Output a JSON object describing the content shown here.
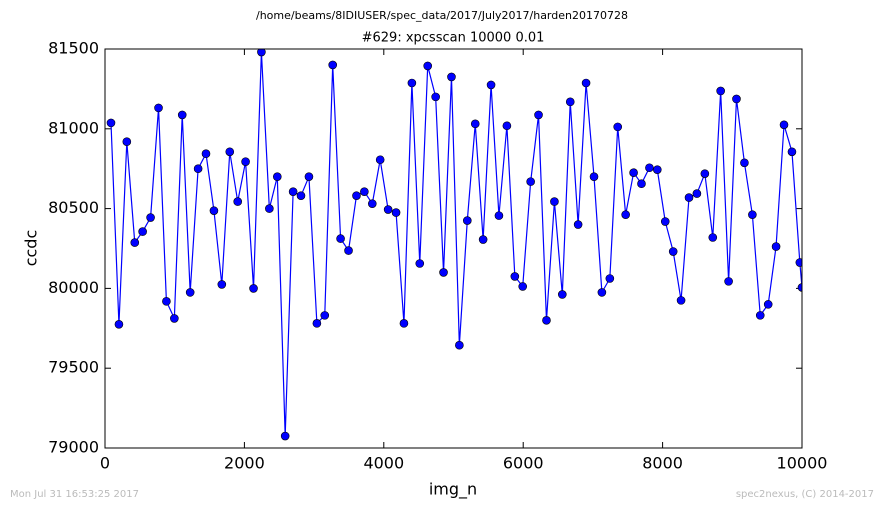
{
  "chart_data": {
    "type": "line",
    "header": "/home/beams/8IDIUSER/spec_data/2017/July2017/harden20170728",
    "title": "#629: xpcsscan 10000 0.01",
    "x_label": "img_n",
    "y_label": "ccdc",
    "footer_left": "Mon Jul 31 16:53:25 2017",
    "footer_right": "spec2nexus, (C) 2014-2017",
    "xlim": [
      0,
      10000
    ],
    "xticks": [
      0,
      2000,
      4000,
      6000,
      8000,
      10000
    ],
    "ylim": [
      79000,
      81500
    ],
    "yticks": [
      79000,
      79500,
      80000,
      80500,
      81000,
      81500
    ],
    "x": [
      86,
      200,
      313,
      427,
      540,
      654,
      768,
      881,
      995,
      1108,
      1222,
      1336,
      1449,
      1563,
      1676,
      1790,
      1904,
      2017,
      2131,
      2244,
      2358,
      2472,
      2585,
      2699,
      2812,
      2926,
      3040,
      3153,
      3267,
      3380,
      3494,
      3608,
      3721,
      3835,
      3948,
      4062,
      4176,
      4289,
      4403,
      4516,
      4630,
      4744,
      4857,
      4971,
      5084,
      5198,
      5312,
      5425,
      5539,
      5652,
      5766,
      5880,
      5993,
      6107,
      6220,
      6334,
      6448,
      6561,
      6675,
      6788,
      6902,
      7016,
      7129,
      7243,
      7356,
      7470,
      7584,
      7697,
      7811,
      7924,
      8038,
      8152,
      8265,
      8379,
      8492,
      8606,
      8720,
      8833,
      8947,
      9060,
      9174,
      9288,
      9401,
      9515,
      9628,
      9742,
      9856,
      9969,
      10000
    ],
    "series": [
      {
        "name": "ccdc",
        "color": "#0000ff",
        "values": [
          81037,
          79775,
          80919,
          80287,
          80356,
          80444,
          81131,
          79919,
          79812,
          81087,
          79975,
          80750,
          80844,
          80487,
          80025,
          80856,
          80544,
          80794,
          80000,
          81481,
          80500,
          80700,
          79075,
          80606,
          80581,
          80700,
          79781,
          79831,
          81400,
          80312,
          80237,
          80581,
          80606,
          80531,
          80806,
          80494,
          80475,
          79781,
          81287,
          80156,
          81394,
          81200,
          80100,
          81325,
          79644,
          80425,
          81031,
          80306,
          81275,
          80456,
          81019,
          80075,
          80012,
          80669,
          81087,
          79800,
          80544,
          79962,
          81169,
          80400,
          81287,
          80700,
          79975,
          80062,
          81012,
          80462,
          80725,
          80656,
          80756,
          80744,
          80419,
          80231,
          79925,
          80569,
          80594,
          80719,
          80319,
          81237,
          80044,
          81187,
          80787,
          80462,
          79831,
          79900,
          80262,
          81025,
          80856,
          80162,
          80006
        ]
      }
    ]
  }
}
